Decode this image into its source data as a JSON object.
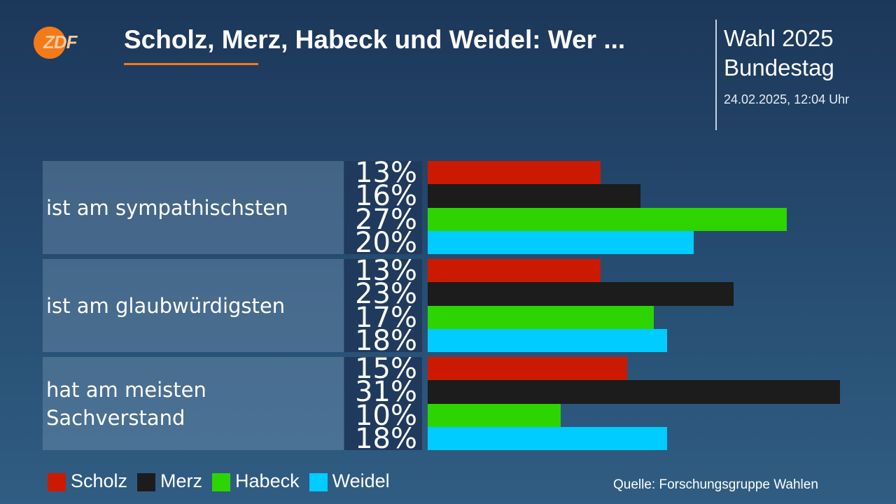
{
  "logo": "ZDF",
  "header": {
    "title": "Scholz, Merz, Habeck und Weidel: Wer ...",
    "election": "Wahl 2025",
    "body": "Bundestag",
    "timestamp": "24.02.2025, 12:04 Uhr"
  },
  "chart_data": {
    "type": "bar",
    "orientation": "horizontal",
    "categories": [
      "ist am sympathischsten",
      "ist am glaubwürdigsten",
      "hat am meisten Sachverstand"
    ],
    "series": [
      {
        "name": "Scholz",
        "color": "#cc1a00",
        "values": [
          13,
          13,
          15
        ],
        "value_labels": [
          "13%",
          "13%",
          "15%"
        ]
      },
      {
        "name": "Merz",
        "color": "#1c1c1c",
        "values": [
          16,
          23,
          31
        ],
        "value_labels": [
          "16%",
          "23%",
          "31%"
        ]
      },
      {
        "name": "Habeck",
        "color": "#2dd400",
        "values": [
          27,
          17,
          10
        ],
        "value_labels": [
          "27%",
          "17%",
          "10%"
        ]
      },
      {
        "name": "Weidel",
        "color": "#00ccff",
        "values": [
          20,
          18,
          18
        ],
        "value_labels": [
          "20%",
          "18%",
          "18%"
        ]
      }
    ],
    "source": "Quelle: Forschungsgruppe Wahlen"
  }
}
